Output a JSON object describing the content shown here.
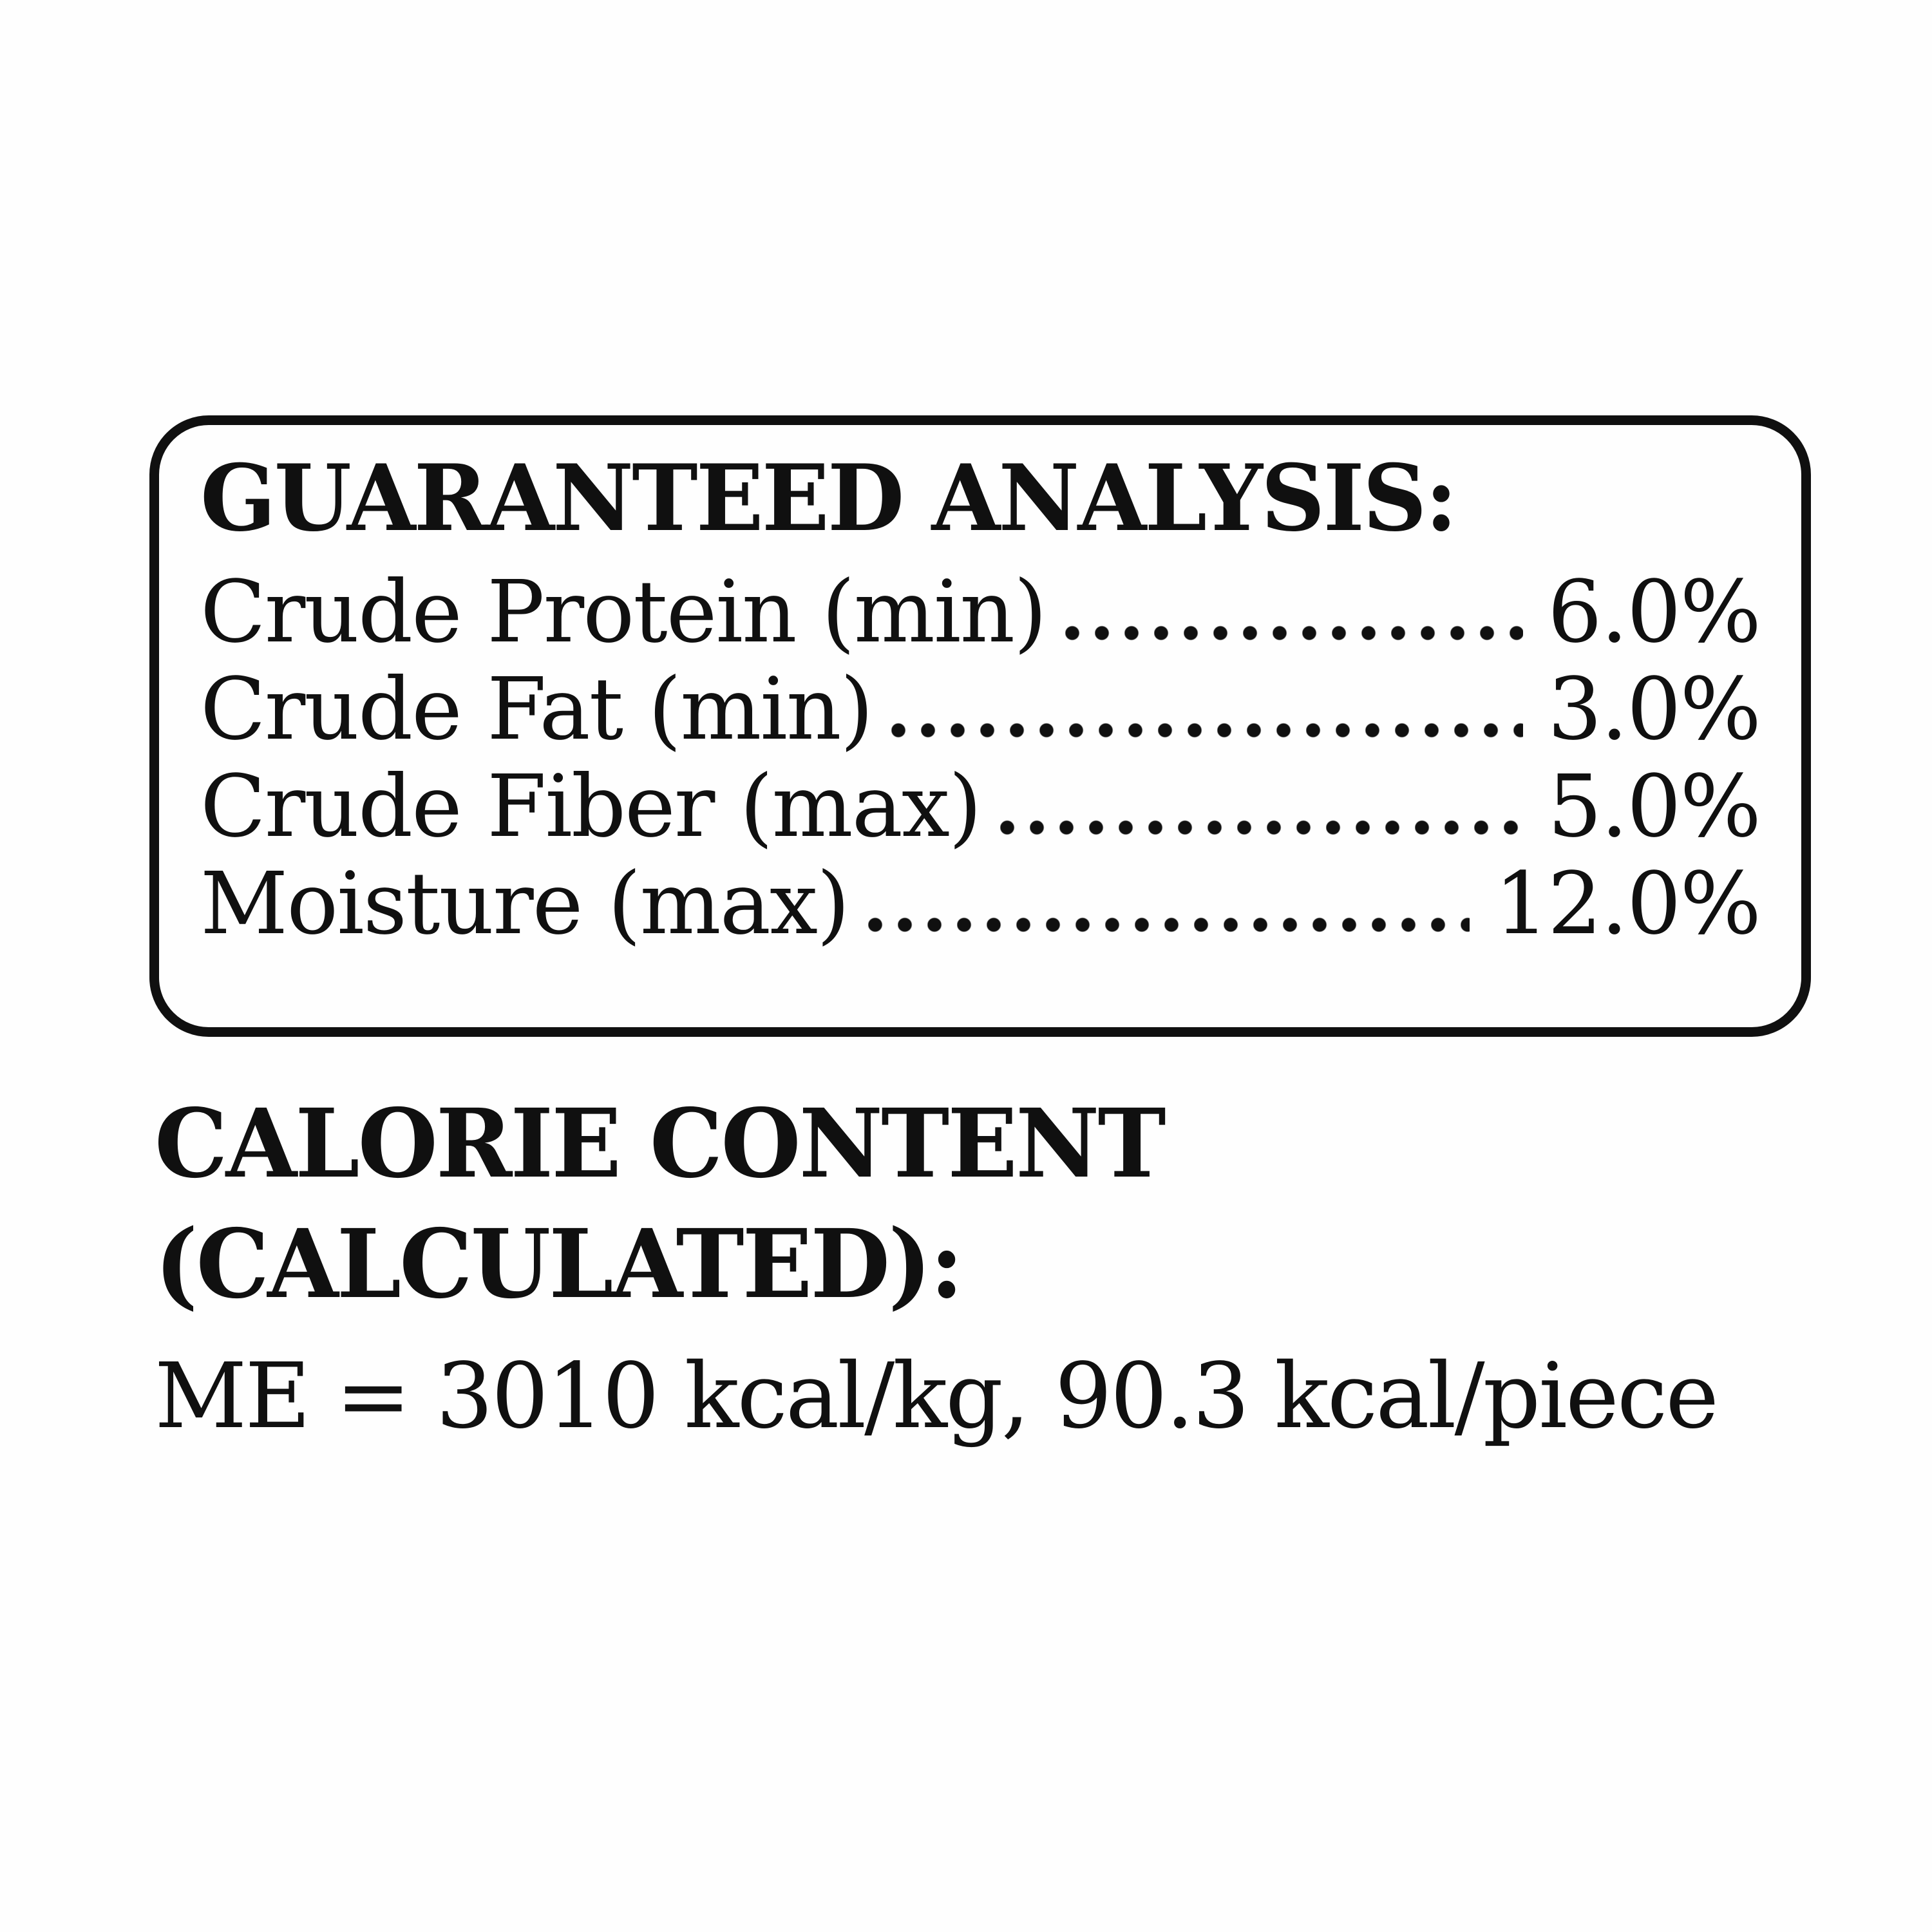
{
  "page": {
    "background_color": "#fefefe",
    "ink_color": "#101010"
  },
  "guaranteed_analysis": {
    "title": "GUARANTEED ANALYSIS:",
    "rows": [
      {
        "label": "Crude Protein (min)",
        "value": "6.0%"
      },
      {
        "label": "Crude Fat (min)",
        "value": "3.0%"
      },
      {
        "label": "Crude Fiber (max)",
        "value": "5.0%"
      },
      {
        "label": "Moisture (max)",
        "value": "12.0%"
      }
    ]
  },
  "calorie_content": {
    "heading_line1": "CALORIE CONTENT",
    "heading_line2": "(CALCULATED):",
    "statement": "ME = 3010 kcal/kg, 90.3 kcal/piece"
  }
}
